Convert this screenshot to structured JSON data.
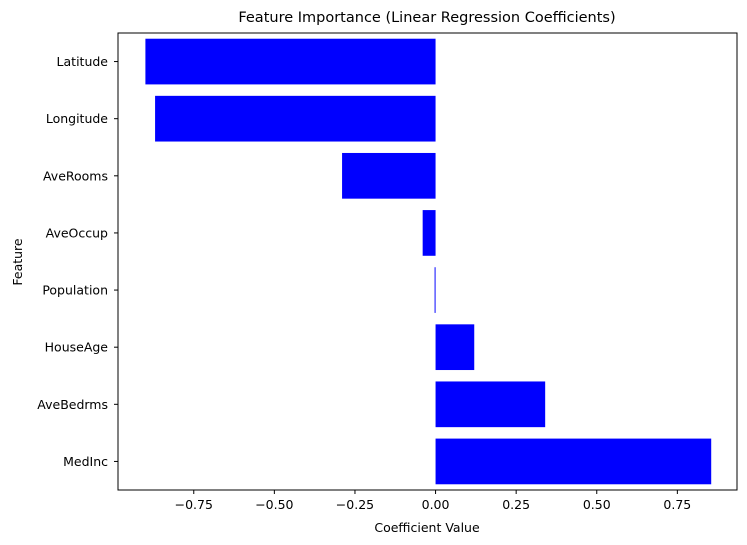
{
  "chart_data": {
    "type": "bar",
    "orientation": "horizontal",
    "title": "Feature Importance (Linear Regression Coefficients)",
    "xlabel": "Coefficient Value",
    "ylabel": "Feature",
    "categories": [
      "Latitude",
      "Longitude",
      "AveRooms",
      "AveOccup",
      "Population",
      "HouseAge",
      "AveBedrms",
      "MedInc"
    ],
    "values": [
      -0.9,
      -0.87,
      -0.29,
      -0.04,
      -0.003,
      0.12,
      0.34,
      0.855
    ],
    "bar_color": "#0000ff",
    "xlim": [
      -0.985,
      0.935
    ],
    "xticks": [
      -0.75,
      -0.5,
      -0.25,
      0.0,
      0.25,
      0.5,
      0.75
    ],
    "xtick_labels": [
      "−0.75",
      "−0.50",
      "−0.25",
      "0.00",
      "0.25",
      "0.50",
      "0.75"
    ],
    "grid": false
  }
}
